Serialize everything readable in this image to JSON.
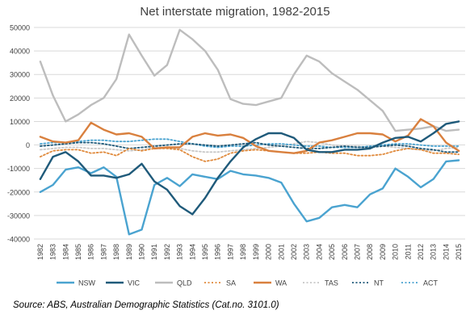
{
  "chart_data": {
    "type": "line",
    "title": "Net interstate migration, 1982-2015",
    "x": [
      "1982",
      "1983",
      "1984",
      "1985",
      "1986",
      "1987",
      "1988",
      "1989",
      "1990",
      "1991",
      "1992",
      "1993",
      "1994",
      "1995",
      "1996",
      "1997",
      "1998",
      "1999",
      "2000",
      "2001",
      "2002",
      "2003",
      "2004",
      "2005",
      "2006",
      "2007",
      "2008",
      "2009",
      "2010",
      "2011",
      "2012",
      "2013",
      "2014",
      "2015"
    ],
    "ylim": [
      -40000,
      50000
    ],
    "yticks": [
      50000,
      40000,
      30000,
      20000,
      10000,
      0,
      -10000,
      -20000,
      -30000,
      -40000
    ],
    "grid": "horizontal",
    "legend_position": "bottom",
    "series": [
      {
        "name": "NSW",
        "color": "#4aa3d0",
        "dash": "solid",
        "values": [
          -20000,
          -17000,
          -10500,
          -9500,
          -12000,
          -9500,
          -13500,
          -38000,
          -36000,
          -17000,
          -14000,
          -17500,
          -12500,
          -13500,
          -14500,
          -11000,
          -12500,
          -13000,
          -14000,
          -16000,
          -25000,
          -32500,
          -31000,
          -26500,
          -25500,
          -26500,
          -21000,
          -18500,
          -10000,
          -13500,
          -18000,
          -14500,
          -7000,
          -6500
        ]
      },
      {
        "name": "VIC",
        "color": "#1f5a7a",
        "dash": "solid",
        "values": [
          -14500,
          -5000,
          -3000,
          -7000,
          -13000,
          -13000,
          -14000,
          -12500,
          -8000,
          -15500,
          -19000,
          -26000,
          -29500,
          -22500,
          -14000,
          -7000,
          -1000,
          2500,
          5000,
          5000,
          3000,
          -2000,
          -3000,
          -3000,
          -2000,
          -2000,
          -1500,
          1000,
          3000,
          3500,
          1500,
          5000,
          9000,
          10000
        ]
      },
      {
        "name": "QLD",
        "color": "#bdbdbd",
        "dash": "solid",
        "values": [
          35500,
          21000,
          10000,
          13000,
          17000,
          20000,
          28000,
          47000,
          38000,
          29500,
          34000,
          49000,
          45000,
          40000,
          32000,
          19500,
          17500,
          17000,
          18500,
          20000,
          30000,
          38000,
          35500,
          30500,
          27000,
          23500,
          19000,
          14500,
          6000,
          6500,
          7000,
          8000,
          6000,
          6500
        ]
      },
      {
        "name": "SA",
        "color": "#e08a3c",
        "dash": "dotted",
        "values": [
          -5000,
          -2500,
          -2000,
          -2000,
          -3500,
          -3000,
          -4500,
          -1500,
          -2500,
          -1500,
          -1500,
          -2000,
          -5000,
          -7000,
          -6000,
          -3500,
          -2500,
          -2000,
          -2500,
          -3000,
          -3500,
          -3500,
          -3000,
          -3500,
          -3500,
          -4500,
          -4500,
          -4000,
          -2500,
          -1500,
          -2000,
          -3500,
          -3500,
          -4000
        ]
      },
      {
        "name": "WA",
        "color": "#d9803e",
        "dash": "solid",
        "values": [
          3500,
          1500,
          1000,
          2000,
          9500,
          6500,
          4500,
          5000,
          3500,
          -1500,
          -1000,
          -1000,
          3500,
          5000,
          4000,
          4500,
          3000,
          -500,
          -2500,
          -3000,
          -3500,
          -2500,
          1000,
          2000,
          3500,
          5000,
          5000,
          4500,
          1500,
          4000,
          11000,
          8000,
          1000,
          -2500
        ]
      },
      {
        "name": "TAS",
        "color": "#c8c8c8",
        "dash": "dotted",
        "values": [
          -2000,
          -1500,
          -1000,
          -1000,
          -1500,
          -1500,
          -2000,
          -2500,
          -2000,
          -1000,
          -1000,
          -1500,
          -2500,
          -3000,
          -3000,
          -2500,
          -2000,
          -1500,
          -1000,
          -500,
          500,
          1500,
          1000,
          0,
          -500,
          -500,
          -1000,
          -500,
          -1000,
          -1500,
          -2000,
          -2500,
          -1500,
          -1000
        ]
      },
      {
        "name": "NT",
        "color": "#1f5a7a",
        "dash": "dotted",
        "values": [
          -500,
          0,
          500,
          1000,
          1000,
          500,
          -500,
          -1500,
          -1000,
          -500,
          0,
          500,
          500,
          0,
          -500,
          0,
          500,
          1000,
          0,
          -500,
          -1000,
          -1500,
          -1500,
          -1000,
          -500,
          -1000,
          -1000,
          -500,
          0,
          -500,
          -1500,
          -2000,
          -3000,
          -3000
        ]
      },
      {
        "name": "ACT",
        "color": "#4aa3d0",
        "dash": "dotted",
        "values": [
          500,
          1000,
          1000,
          1500,
          2000,
          2000,
          1500,
          1500,
          2000,
          2500,
          2500,
          1500,
          500,
          -500,
          -1000,
          -500,
          -500,
          0,
          500,
          500,
          0,
          -500,
          -500,
          -1000,
          -1000,
          -1000,
          -500,
          0,
          500,
          500,
          0,
          -500,
          -500,
          -500
        ]
      }
    ]
  },
  "source": "Source:  ABS, Australian Demographic Statistics (Cat.no. 3101.0)"
}
